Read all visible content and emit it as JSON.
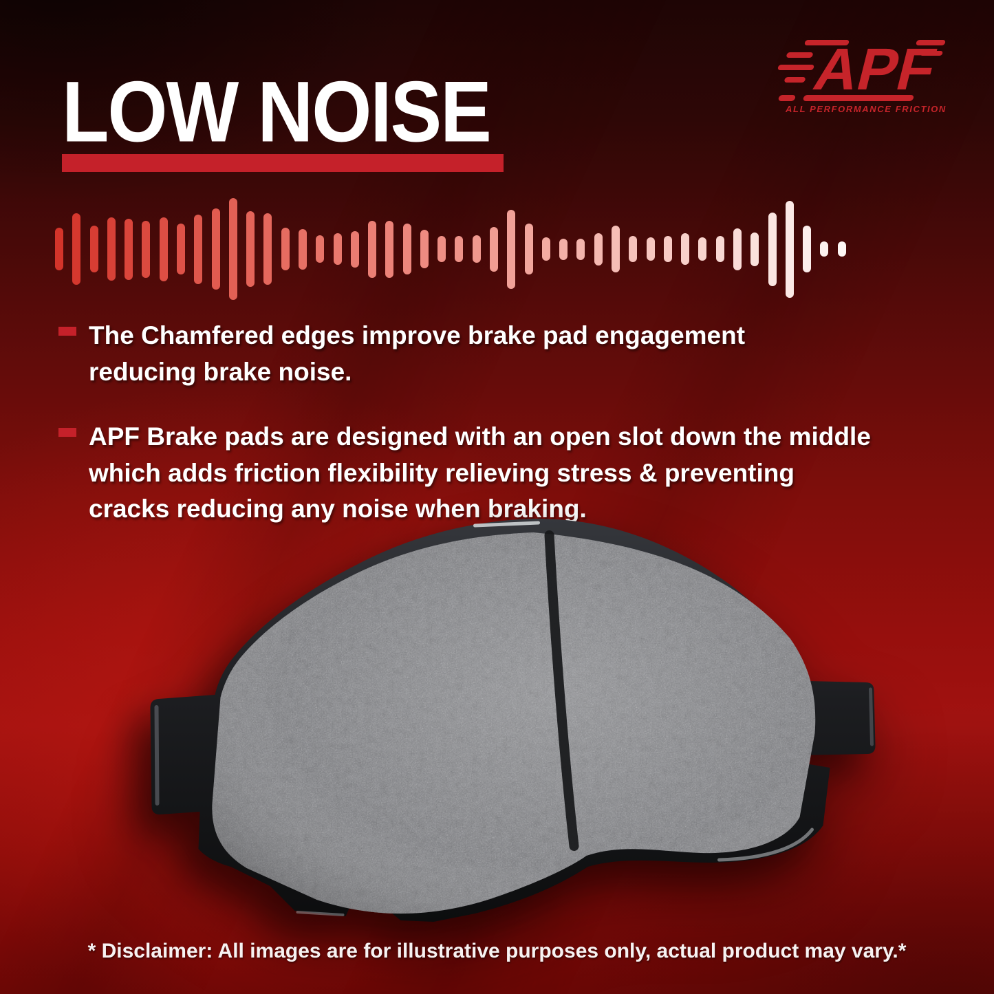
{
  "page": {
    "title": "LOW NOISE"
  },
  "accent": {
    "bar_color": "#c5212a"
  },
  "logo": {
    "brand": "APF",
    "tagline": "ALL PERFORMANCE FRICTION",
    "color": "#c6242a"
  },
  "waveform": {
    "heights": [
      0.42,
      0.7,
      0.46,
      0.62,
      0.6,
      0.56,
      0.63,
      0.5,
      0.68,
      0.8,
      1.0,
      0.74,
      0.7,
      0.42,
      0.4,
      0.27,
      0.31,
      0.36,
      0.56,
      0.56,
      0.5,
      0.38,
      0.26,
      0.26,
      0.27,
      0.44,
      0.78,
      0.5,
      0.23,
      0.21,
      0.21,
      0.32,
      0.46,
      0.26,
      0.23,
      0.26,
      0.31,
      0.23,
      0.26,
      0.41,
      0.33,
      0.72,
      0.95,
      0.46,
      0.15,
      0.15
    ],
    "color_stops": [
      "#d4342a",
      "#e4655a",
      "#ef9187",
      "#f7c6bf",
      "#fdf6f4"
    ]
  },
  "bullets": [
    {
      "text": "The Chamfered edges improve brake pad engagement\nreducing brake noise."
    },
    {
      "text": "APF Brake pads are designed with an open slot down the middle\nwhich adds friction flexibility relieving stress & preventing\n cracks reducing any noise when braking."
    }
  ],
  "disclaimer": "* Disclaimer: All images are for illustrative purposes only, actual product may vary.*"
}
